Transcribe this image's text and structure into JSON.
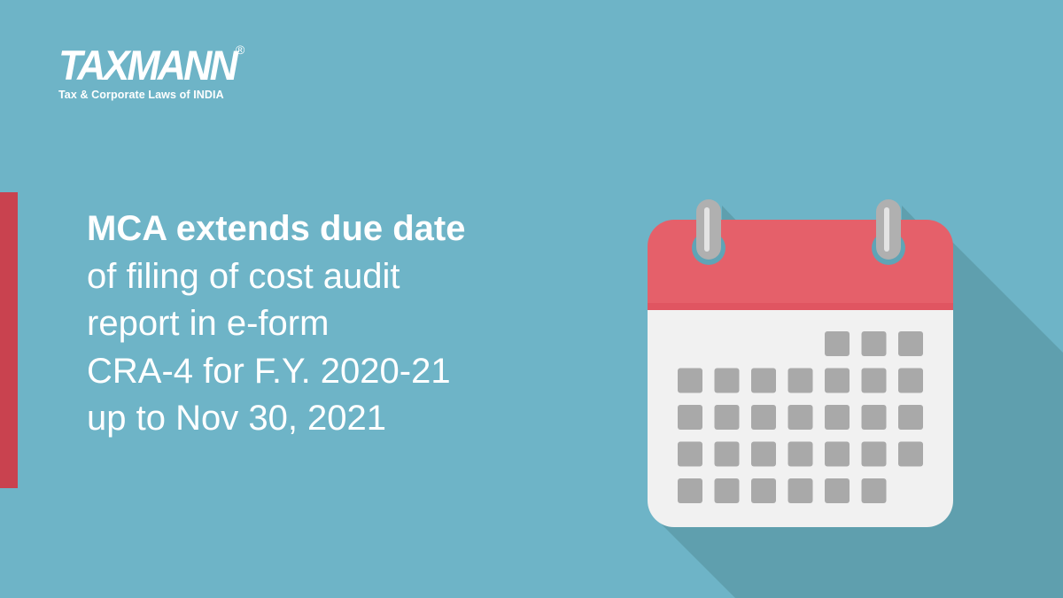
{
  "logo": {
    "word": "TAXMANN",
    "registered": "®",
    "tagline": "Tax & Corporate Laws of INDIA"
  },
  "headline": {
    "lines": [
      "MCA extends due date",
      "of filing of cost audit",
      "report in e-form",
      "CRA-4 for F.Y. 2020-21",
      "up to Nov 30, 2021"
    ]
  },
  "colors": {
    "background": "#6eb4c7",
    "accent": "#c9424f",
    "calendar_header": "#e5606a",
    "calendar_body": "#f1f1f1",
    "day_cell": "#a9a9a9"
  },
  "icon": "calendar-icon"
}
